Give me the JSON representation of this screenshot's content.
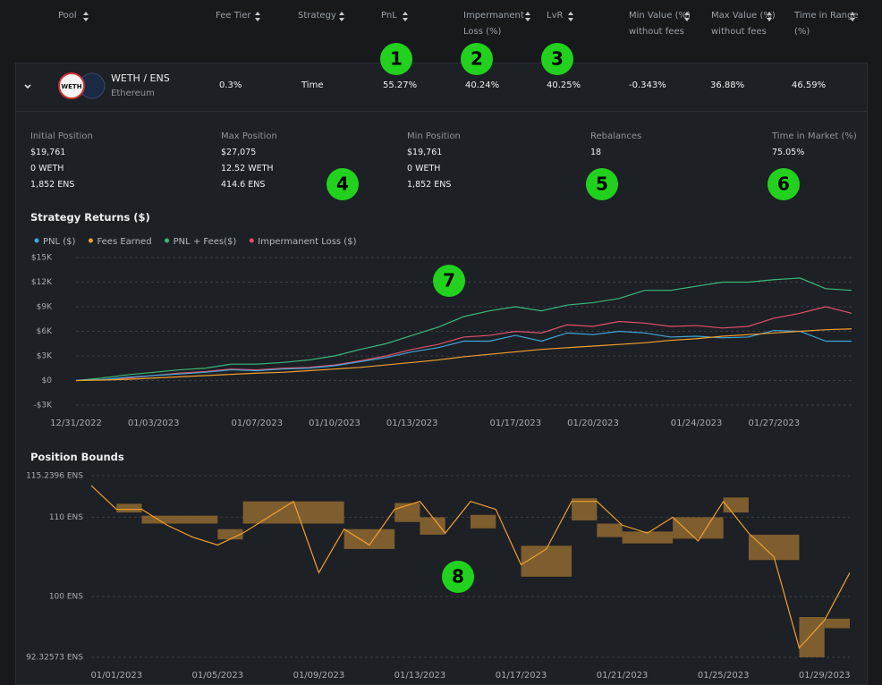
{
  "table": {
    "headers": [
      "Pool",
      "Fee Tier",
      "Strategy",
      "PnL",
      "Impermanent Loss (%)",
      "LvR",
      "Min Value (%) without fees",
      "Max Value (%) without fees",
      "Time in Range (%)"
    ],
    "row": {
      "icon": "WETH",
      "pool": "WETH / ENS",
      "chain": "Ethereum",
      "cells": [
        "0.3%",
        "Time",
        "55.27%",
        "40.24%",
        "40.25%",
        "-0.343%",
        "36.88%",
        "46.59%"
      ]
    }
  },
  "details": [
    {
      "label": "Initial Position",
      "values": [
        "$19,761",
        "0 WETH",
        "1,852 ENS"
      ]
    },
    {
      "label": "Max Position",
      "values": [
        "$27,075",
        "12.52 WETH",
        "414.6 ENS"
      ]
    },
    {
      "label": "Min Position",
      "values": [
        "$19,761",
        "0 WETH",
        "1,852 ENS"
      ]
    },
    {
      "label": "Rebalances",
      "values": [
        "18"
      ]
    },
    {
      "label": "Time in Market (%)",
      "values": [
        "75.05%"
      ]
    }
  ],
  "annotations": [
    "1",
    "2",
    "3",
    "4",
    "5",
    "6",
    "7",
    "8"
  ],
  "returns_chart": {
    "type": "line",
    "title": "Strategy Returns ($)",
    "x": [
      "12/31/2022",
      "01/01/2023",
      "01/02/2023",
      "01/03/2023",
      "01/04/2023",
      "01/05/2023",
      "01/06/2023",
      "01/07/2023",
      "01/08/2023",
      "01/09/2023",
      "01/10/2023",
      "01/11/2023",
      "01/12/2023",
      "01/13/2023",
      "01/14/2023",
      "01/15/2023",
      "01/16/2023",
      "01/17/2023",
      "01/18/2023",
      "01/19/2023",
      "01/20/2023",
      "01/21/2023",
      "01/22/2023",
      "01/23/2023",
      "01/24/2023",
      "01/25/2023",
      "01/26/2023",
      "01/27/2023",
      "01/28/2023",
      "01/29/2023",
      "01/30/2023"
    ],
    "xticks": [
      "12/31/2022",
      "01/03/2023",
      "01/07/2023",
      "01/10/2023",
      "01/13/2023",
      "01/17/2023",
      "01/20/2023",
      "01/24/2023",
      "01/27/2023"
    ],
    "ylim": [
      -3000,
      15000
    ],
    "yticks": [
      {
        "value": 15000,
        "label": "$15K"
      },
      {
        "value": 12000,
        "label": "$12K"
      },
      {
        "value": 9000,
        "label": "$9K"
      },
      {
        "value": 6000,
        "label": "$6K"
      },
      {
        "value": 3000,
        "label": "$3K"
      },
      {
        "value": 0,
        "label": "$0"
      },
      {
        "value": -3000,
        "label": "-$3K"
      }
    ],
    "grid": true,
    "series": [
      {
        "name": "PNL ($)",
        "color": "#3fa8d8",
        "values": [
          0,
          100,
          400,
          600,
          800,
          1000,
          1300,
          1200,
          1400,
          1500,
          1800,
          2300,
          2800,
          3500,
          4000,
          4800,
          4800,
          5500,
          4800,
          5800,
          5600,
          6000,
          5800,
          5300,
          5400,
          5200,
          5300,
          6100,
          6000,
          4800,
          4800
        ]
      },
      {
        "name": "Fees Earned",
        "color": "#f0a030",
        "values": [
          0,
          50,
          150,
          300,
          450,
          600,
          750,
          900,
          1000,
          1200,
          1400,
          1600,
          1900,
          2200,
          2500,
          2900,
          3200,
          3500,
          3800,
          4000,
          4200,
          4400,
          4600,
          4900,
          5100,
          5400,
          5600,
          5800,
          6000,
          6200,
          6300
        ]
      },
      {
        "name": "PNL + Fees($)",
        "color": "#3db87a",
        "values": [
          0,
          300,
          700,
          1000,
          1300,
          1500,
          2000,
          2000,
          2200,
          2500,
          3000,
          3800,
          4500,
          5500,
          6500,
          7800,
          8500,
          9000,
          8500,
          9200,
          9500,
          10000,
          11000,
          11000,
          11500,
          12000,
          12000,
          12300,
          12500,
          11200,
          11000
        ]
      },
      {
        "name": "Impermanent Loss ($)",
        "color": "#e0506a",
        "values": [
          0,
          100,
          300,
          600,
          900,
          1100,
          1400,
          1300,
          1500,
          1600,
          1900,
          2400,
          3000,
          3800,
          4400,
          5300,
          5500,
          6000,
          5800,
          6800,
          6600,
          7200,
          7000,
          6600,
          6700,
          6400,
          6600,
          7600,
          8200,
          9000,
          8200
        ]
      }
    ]
  },
  "bounds_chart": {
    "type": "line",
    "title": "Position Bounds",
    "x": [
      "12/31/2022",
      "01/01/2023",
      "01/02/2023",
      "01/03/2023",
      "01/04/2023",
      "01/05/2023",
      "01/06/2023",
      "01/07/2023",
      "01/08/2023",
      "01/09/2023",
      "01/10/2023",
      "01/11/2023",
      "01/12/2023",
      "01/13/2023",
      "01/14/2023",
      "01/15/2023",
      "01/16/2023",
      "01/17/2023",
      "01/18/2023",
      "01/19/2023",
      "01/20/2023",
      "01/21/2023",
      "01/22/2023",
      "01/23/2023",
      "01/24/2023",
      "01/25/2023",
      "01/26/2023",
      "01/27/2023",
      "01/28/2023",
      "01/29/2023",
      "01/30/2023"
    ],
    "xticks": [
      "01/01/2023",
      "01/05/2023",
      "01/09/2023",
      "01/13/2023",
      "01/17/2023",
      "01/21/2023",
      "01/25/2023",
      "01/29/2023"
    ],
    "ylim": [
      92.32573,
      115.2396
    ],
    "yticks": [
      {
        "value": 115.2396,
        "label": "115.2396 ENS"
      },
      {
        "value": 110,
        "label": "110 ENS"
      },
      {
        "value": 100,
        "label": "100 ENS"
      },
      {
        "value": 92.32573,
        "label": "92.32573 ENS"
      }
    ],
    "price": {
      "color": "#f0a030",
      "values": [
        114,
        111,
        111,
        109,
        107.5,
        106.5,
        108,
        110,
        112,
        103,
        108.5,
        106.5,
        111,
        112,
        108,
        112,
        111,
        104,
        106,
        112,
        112,
        109,
        108,
        110,
        107,
        112,
        108,
        105,
        93.5,
        97,
        103
      ]
    },
    "range_color": "#8a6530",
    "ranges": [
      {
        "from": "01/01/2023",
        "to": "01/02/2023",
        "lower": 110.6,
        "upper": 111.7
      },
      {
        "from": "01/02/2023",
        "to": "01/05/2023",
        "lower": 109.2,
        "upper": 110.2
      },
      {
        "from": "01/05/2023",
        "to": "01/06/2023",
        "lower": 107.2,
        "upper": 108.5
      },
      {
        "from": "01/06/2023",
        "to": "01/10/2023",
        "lower": 109.2,
        "upper": 112
      },
      {
        "from": "01/10/2023",
        "to": "01/12/2023",
        "lower": 106,
        "upper": 108.5
      },
      {
        "from": "01/12/2023",
        "to": "01/13/2023",
        "lower": 109.4,
        "upper": 111.8
      },
      {
        "from": "01/13/2023",
        "to": "01/14/2023",
        "lower": 107.8,
        "upper": 110
      },
      {
        "from": "01/15/2023",
        "to": "01/16/2023",
        "lower": 108.6,
        "upper": 110.3
      },
      {
        "from": "01/17/2023",
        "to": "01/19/2023",
        "lower": 102.5,
        "upper": 106.4
      },
      {
        "from": "01/19/2023",
        "to": "01/20/2023",
        "lower": 109.6,
        "upper": 112.4
      },
      {
        "from": "01/20/2023",
        "to": "01/21/2023",
        "lower": 107.5,
        "upper": 109.2
      },
      {
        "from": "01/21/2023",
        "to": "01/23/2023",
        "lower": 106.7,
        "upper": 108.2
      },
      {
        "from": "01/23/2023",
        "to": "01/25/2023",
        "lower": 107.3,
        "upper": 110
      },
      {
        "from": "01/25/2023",
        "to": "01/26/2023",
        "lower": 110.6,
        "upper": 112.5
      },
      {
        "from": "01/26/2023",
        "to": "01/28/2023",
        "lower": 104.6,
        "upper": 107.8
      },
      {
        "from": "01/28/2023",
        "to": "01/29/2023",
        "lower": 92.33,
        "upper": 97.4
      },
      {
        "from": "01/29/2023",
        "to": "01/30/2023",
        "lower": 96,
        "upper": 97.2
      }
    ]
  }
}
